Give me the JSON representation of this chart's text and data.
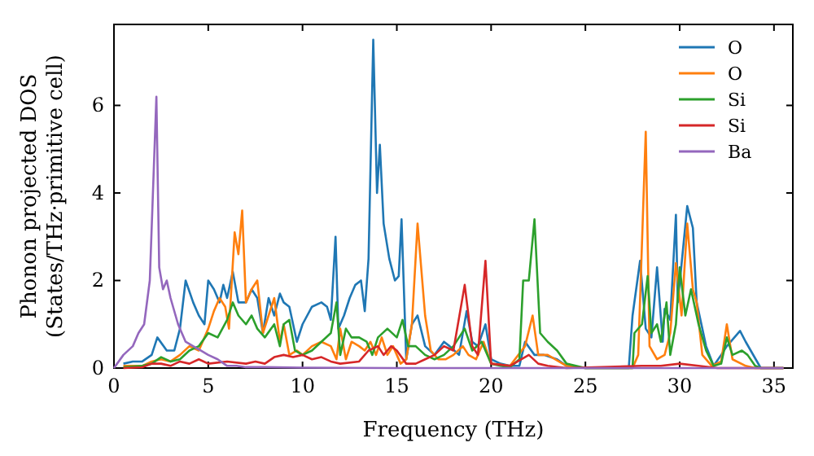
{
  "chart_data": {
    "type": "line",
    "xlabel": "Frequency (THz)",
    "ylabel": "Phonon projected DOS\n(States/THz·primitive cell)",
    "xlim": [
      0,
      36
    ],
    "ylim": [
      0,
      7.85
    ],
    "xticks": [
      0,
      5,
      10,
      15,
      20,
      25,
      30,
      35
    ],
    "yticks": [
      0,
      2,
      4,
      6
    ],
    "legend": "top right",
    "grid": false,
    "series": [
      {
        "name": "O",
        "color": "#1f77b4",
        "x": [
          0.5,
          1,
          1.5,
          2,
          2.3,
          2.8,
          3.2,
          3.5,
          3.8,
          4.2,
          4.5,
          4.8,
          5.0,
          5.3,
          5.6,
          5.8,
          6.0,
          6.3,
          6.6,
          7.0,
          7.3,
          7.6,
          7.9,
          8.2,
          8.5,
          8.8,
          9.0,
          9.3,
          9.7,
          10.0,
          10.5,
          11.0,
          11.3,
          11.5,
          11.75,
          11.9,
          12.2,
          12.5,
          12.8,
          13.1,
          13.3,
          13.5,
          13.75,
          13.95,
          14.1,
          14.3,
          14.6,
          14.9,
          15.1,
          15.25,
          15.5,
          15.8,
          16.1,
          16.5,
          17.0,
          17.5,
          17.8,
          18.3,
          18.7,
          19.0,
          19.3,
          19.7,
          20.0,
          20.5,
          21.0,
          21.5,
          21.8,
          22.3,
          22.8,
          23.5,
          24.0,
          25.0,
          27.3,
          27.5,
          27.9,
          28.2,
          28.5,
          28.8,
          29.1,
          29.2,
          29.5,
          29.8,
          29.9,
          30.4,
          30.7,
          30.9,
          31.4,
          31.8,
          32.2,
          32.5,
          33.2,
          33.5,
          34.3,
          35.5
        ],
        "values": [
          0.1,
          0.15,
          0.15,
          0.3,
          0.7,
          0.4,
          0.4,
          0.9,
          2.0,
          1.5,
          1.2,
          1.0,
          2.0,
          1.8,
          1.5,
          1.9,
          1.6,
          2.2,
          1.5,
          1.5,
          1.8,
          1.6,
          0.8,
          1.6,
          1.2,
          1.7,
          1.5,
          1.4,
          0.6,
          1.0,
          1.4,
          1.5,
          1.4,
          1.1,
          3.0,
          0.9,
          1.2,
          1.6,
          1.9,
          2.0,
          1.3,
          2.5,
          7.5,
          4.0,
          5.1,
          3.3,
          2.5,
          2.0,
          2.1,
          3.4,
          0.2,
          1.0,
          1.2,
          0.5,
          0.3,
          0.6,
          0.5,
          0.3,
          1.3,
          0.6,
          0.5,
          1.0,
          0.2,
          0.1,
          0.05,
          0.05,
          0.6,
          0.3,
          0.3,
          0.2,
          0.05,
          0,
          0,
          1.2,
          2.45,
          0.9,
          0.7,
          2.3,
          0.6,
          1.35,
          1.1,
          3.5,
          1.5,
          3.7,
          3.2,
          1.5,
          0.5,
          0.05,
          0.3,
          0.5,
          0.85,
          0.6,
          0,
          0
        ]
      },
      {
        "name": "O",
        "color": "#ff7f0e",
        "x": [
          0.5,
          1.5,
          2,
          2.5,
          3,
          3.5,
          4,
          4.5,
          5,
          5.3,
          5.6,
          5.9,
          6.1,
          6.4,
          6.6,
          6.8,
          7.0,
          7.3,
          7.6,
          7.9,
          8.2,
          8.5,
          8.8,
          9.0,
          9.3,
          9.7,
          10,
          10.5,
          11,
          11.5,
          11.8,
          12.0,
          12.3,
          12.6,
          13,
          13.3,
          13.6,
          13.9,
          14.2,
          14.5,
          14.8,
          15.2,
          15.5,
          15.8,
          16.1,
          16.5,
          16.8,
          17.2,
          17.6,
          18,
          18.5,
          18.8,
          19.2,
          19.6,
          20,
          21,
          21.8,
          22.2,
          22.5,
          23,
          24,
          25,
          27.5,
          27.8,
          28.2,
          28.4,
          28.8,
          29.2,
          29.5,
          29.8,
          30.1,
          30.4,
          30.7,
          30.9,
          31.2,
          31.7,
          32.2,
          32.5,
          32.8,
          33.5,
          34,
          35.5
        ],
        "values": [
          0.05,
          0.05,
          0.15,
          0.2,
          0.15,
          0.3,
          0.5,
          0.4,
          0.9,
          1.3,
          1.6,
          1.4,
          0.9,
          3.1,
          2.6,
          3.6,
          1.5,
          1.8,
          2.0,
          0.8,
          1.2,
          1.6,
          0.6,
          1.0,
          0.3,
          0.4,
          0.3,
          0.5,
          0.6,
          0.5,
          0.2,
          0.9,
          0.2,
          0.6,
          0.5,
          0.4,
          0.6,
          0.3,
          0.7,
          0.3,
          0.5,
          0.1,
          0.2,
          1.0,
          3.3,
          1.2,
          0.4,
          0.2,
          0.2,
          0.3,
          0.5,
          0.3,
          0.2,
          0.6,
          0.1,
          0.05,
          0.5,
          1.2,
          0.3,
          0.3,
          0.05,
          0,
          0,
          0.3,
          5.4,
          0.5,
          0.2,
          0.3,
          0.8,
          2.4,
          1.2,
          3.3,
          1.8,
          1.5,
          0.3,
          0.05,
          0.15,
          1.0,
          0.2,
          0.05,
          0,
          0
        ]
      },
      {
        "name": "Si",
        "color": "#2ca02c",
        "x": [
          0.5,
          1.5,
          2,
          2.5,
          3,
          3.5,
          4,
          4.5,
          5,
          5.5,
          6,
          6.3,
          6.6,
          7,
          7.3,
          7.6,
          8,
          8.5,
          8.8,
          9.0,
          9.3,
          9.6,
          10,
          10.5,
          11,
          11.5,
          11.8,
          12,
          12.3,
          12.6,
          13,
          13.4,
          13.7,
          14,
          14.5,
          15,
          15.3,
          15.6,
          16,
          16.5,
          17,
          17.5,
          18,
          18.6,
          19,
          19.5,
          20,
          20.5,
          21,
          21.5,
          21.7,
          22.0,
          22.3,
          22.6,
          23,
          23.5,
          24,
          25,
          27.5,
          27.6,
          28.0,
          28.3,
          28.5,
          28.8,
          29.0,
          29.3,
          29.5,
          29.8,
          30,
          30.3,
          30.6,
          31,
          31.4,
          31.8,
          32.2,
          32.5,
          32.8,
          33.3,
          33.6,
          34,
          34.3,
          35.5
        ],
        "values": [
          0.02,
          0.05,
          0.1,
          0.25,
          0.15,
          0.2,
          0.4,
          0.5,
          0.8,
          0.7,
          1.1,
          1.5,
          1.2,
          1.0,
          1.2,
          0.9,
          0.7,
          1.0,
          0.5,
          1.0,
          1.1,
          0.4,
          0.3,
          0.4,
          0.6,
          0.8,
          1.5,
          0.3,
          0.9,
          0.7,
          0.7,
          0.6,
          0.3,
          0.7,
          0.9,
          0.7,
          1.1,
          0.5,
          0.5,
          0.3,
          0.2,
          0.3,
          0.5,
          0.9,
          0.4,
          0.6,
          0.1,
          0.05,
          0.02,
          0.2,
          2.0,
          2.0,
          3.4,
          0.8,
          0.6,
          0.4,
          0.1,
          0,
          0,
          0.8,
          1.0,
          2.1,
          0.8,
          1.0,
          0.6,
          1.5,
          0.3,
          1.0,
          2.3,
          1.2,
          1.8,
          1.0,
          0.4,
          0.05,
          0.1,
          0.7,
          0.3,
          0.4,
          0.3,
          0.05,
          0,
          0
        ]
      },
      {
        "name": "Si",
        "color": "#d62728",
        "x": [
          0.5,
          1.5,
          2,
          2.5,
          3,
          3.5,
          4,
          4.5,
          5,
          6,
          7,
          7.5,
          8,
          8.5,
          9,
          9.5,
          10,
          10.5,
          11,
          11.5,
          12,
          13,
          13.5,
          14,
          14.3,
          14.7,
          15,
          15.5,
          16,
          16.5,
          17,
          17.5,
          18,
          18.6,
          19,
          19.3,
          19.7,
          20,
          21,
          22,
          22.5,
          23,
          24,
          28,
          29,
          30,
          31,
          32,
          34,
          35.5
        ],
        "values": [
          0,
          0.02,
          0.1,
          0.1,
          0.05,
          0.15,
          0.1,
          0.2,
          0.1,
          0.15,
          0.1,
          0.15,
          0.1,
          0.25,
          0.3,
          0.25,
          0.3,
          0.2,
          0.25,
          0.15,
          0.1,
          0.15,
          0.4,
          0.5,
          0.3,
          0.5,
          0.4,
          0.1,
          0.1,
          0.2,
          0.3,
          0.5,
          0.4,
          1.9,
          0.5,
          0.3,
          2.45,
          0.1,
          0.05,
          0.3,
          0.1,
          0.05,
          0,
          0.05,
          0.05,
          0.1,
          0.05,
          0,
          0,
          0
        ]
      },
      {
        "name": "Ba",
        "color": "#9467bd",
        "x": [
          0,
          0.5,
          1,
          1.3,
          1.6,
          1.9,
          2.25,
          2.4,
          2.6,
          2.8,
          3.0,
          3.4,
          3.8,
          4.2,
          4.6,
          5,
          5.5,
          6,
          6.5,
          7,
          8,
          10,
          15,
          25,
          35.5
        ],
        "values": [
          0,
          0.3,
          0.5,
          0.8,
          1.0,
          2.0,
          6.2,
          2.3,
          1.8,
          2.0,
          1.6,
          1.0,
          0.6,
          0.5,
          0.4,
          0.3,
          0.2,
          0.05,
          0.05,
          0.02,
          0.02,
          0.01,
          0,
          0,
          0
        ]
      }
    ]
  }
}
